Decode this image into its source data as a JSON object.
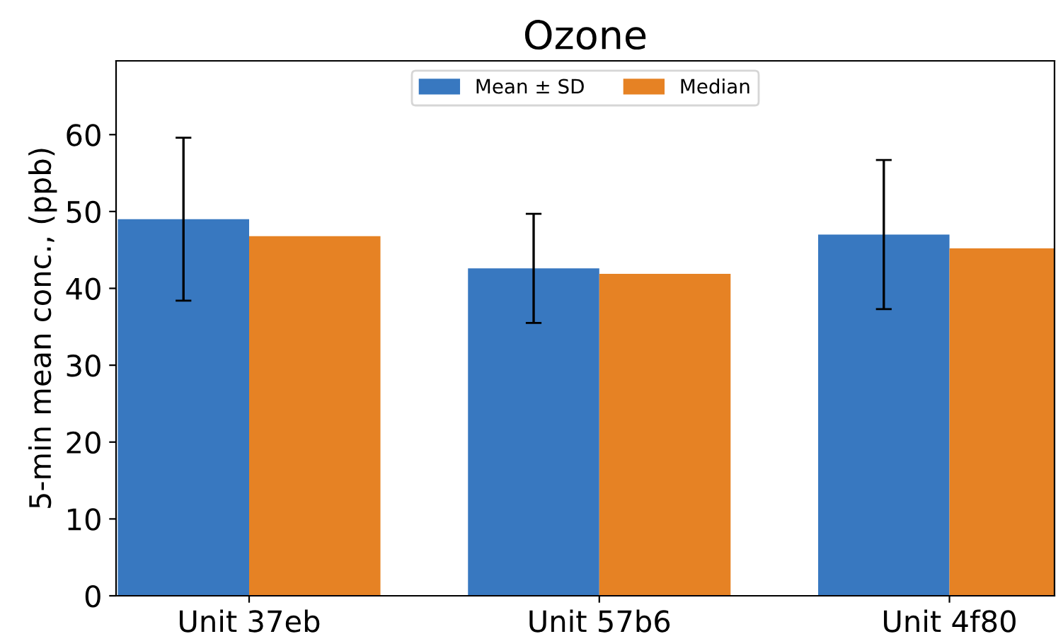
{
  "chart_data": {
    "type": "bar",
    "title": "Ozone",
    "ylabel": "5-min mean conc., (ppb)",
    "categories": [
      "Unit 37eb",
      "Unit 57b6",
      "Unit 4f80"
    ],
    "series": [
      {
        "name": "Mean ± SD",
        "color": "#3878c0",
        "values": [
          49.0,
          42.6,
          47.0
        ],
        "errors": [
          10.6,
          7.1,
          9.7
        ]
      },
      {
        "name": "Median",
        "color": "#e68224",
        "values": [
          46.8,
          41.9,
          45.2
        ]
      }
    ],
    "ylim": [
      0,
      69.6
    ],
    "yticks": [
      0,
      10,
      20,
      30,
      40,
      50,
      60
    ],
    "grid": false,
    "legend": "top"
  }
}
